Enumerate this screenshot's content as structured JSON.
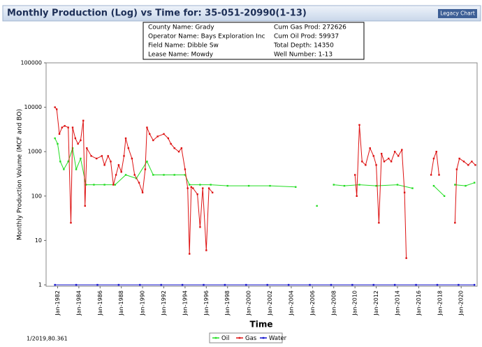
{
  "header": {
    "title": "Monthly Production (Log) vs Time for: 35-051-20990(1-13)",
    "button": "Legacy Chart"
  },
  "info_box": {
    "rows": [
      [
        "County Name:  Grady",
        "Cum Gas Prod:  272626"
      ],
      [
        "Operator Name:  Bays Exploration Inc",
        "Cum Oil Prod:  59937"
      ],
      [
        "Field Name:  Dibble Sw",
        "Total Depth:  14350"
      ],
      [
        "Lease Name:  Mowdy",
        "Well Number:  1-13"
      ]
    ]
  },
  "cursor_readout": "1/2019,80.361",
  "chart_data": {
    "type": "line",
    "x_label": "Time",
    "y_label": "Monthly Production Volume (MCF and BO)",
    "log_y": true,
    "grid": false,
    "legend": "bottom",
    "xlim": [
      "1980-12",
      "2021-07"
    ],
    "ylim": [
      1,
      100000
    ],
    "yticks": [
      1,
      10,
      100,
      1000,
      10000,
      100000
    ],
    "xticks": [
      {
        "value": "1982-01",
        "label": "Jan-1982"
      },
      {
        "value": "1984-01",
        "label": "Jan-1984"
      },
      {
        "value": "1986-01",
        "label": "Jan-1986"
      },
      {
        "value": "1988-01",
        "label": "Jan-1988"
      },
      {
        "value": "1990-01",
        "label": "Jan-1990"
      },
      {
        "value": "1992-01",
        "label": "Jan-1992"
      },
      {
        "value": "1994-01",
        "label": "Jan-1994"
      },
      {
        "value": "1996-01",
        "label": "Jan-1996"
      },
      {
        "value": "1998-01",
        "label": "Jan-1998"
      },
      {
        "value": "2000-01",
        "label": "Jan-2000"
      },
      {
        "value": "2002-01",
        "label": "Jan-2002"
      },
      {
        "value": "2004-01",
        "label": "Jan-2004"
      },
      {
        "value": "2006-01",
        "label": "Jan-2006"
      },
      {
        "value": "2008-01",
        "label": "Jan-2008"
      },
      {
        "value": "2010-01",
        "label": "Jan-2010"
      },
      {
        "value": "2012-01",
        "label": "Jan-2012"
      },
      {
        "value": "2014-01",
        "label": "Jan-2014"
      },
      {
        "value": "2016-01",
        "label": "Jan-2016"
      },
      {
        "value": "2018-01",
        "label": "Jan-2018"
      },
      {
        "value": "2020-01",
        "label": "Jan-2020"
      }
    ],
    "series": [
      {
        "name": "Oil",
        "color": "#22dd22",
        "x": [
          "1981-10",
          "1982-01",
          "1982-04",
          "1982-08",
          "1983-01",
          "1983-06",
          "1983-10",
          "1984-03",
          "1984-09",
          "1985-06",
          "1986-06",
          "1987-06",
          "1988-06",
          "1989-06",
          "1990-06",
          "1991-01",
          "1992-01",
          "1993-01",
          "1994-01",
          "1994-06",
          "1995-06",
          "1996-06",
          "1998-01",
          "2000-01",
          "2002-01",
          "2004-06",
          "2005-06",
          "2006-06",
          "2007-03",
          "2008-01",
          "2009-01",
          "2010-06",
          "2012-01",
          "2014-01",
          "2015-06",
          "2016-06",
          "2017-06",
          "2018-06",
          "2019-01",
          "2019-06",
          "2020-06",
          "2021-04"
        ],
        "values": [
          2000,
          1500,
          600,
          400,
          600,
          1200,
          400,
          700,
          180,
          180,
          180,
          180,
          300,
          250,
          600,
          300,
          300,
          300,
          300,
          180,
          180,
          180,
          170,
          170,
          170,
          160,
          null,
          60,
          null,
          180,
          170,
          180,
          170,
          180,
          150,
          null,
          170,
          100,
          null,
          180,
          170,
          200
        ]
      },
      {
        "name": "Gas",
        "color": "#dd1111",
        "x": [
          "1981-10",
          "1981-12",
          "1982-03",
          "1982-06",
          "1982-09",
          "1983-01",
          "1983-04",
          "1983-06",
          "1983-09",
          "1983-12",
          "1984-03",
          "1984-06",
          "1984-08",
          "1984-10",
          "1985-03",
          "1985-09",
          "1986-03",
          "1986-06",
          "1986-10",
          "1987-01",
          "1987-04",
          "1987-07",
          "1987-10",
          "1988-01",
          "1988-04",
          "1988-06",
          "1988-09",
          "1989-01",
          "1989-04",
          "1989-09",
          "1990-01",
          "1990-04",
          "1990-06",
          "1990-09",
          "1991-01",
          "1991-06",
          "1992-01",
          "1992-06",
          "1992-09",
          "1993-01",
          "1993-06",
          "1993-09",
          "1994-01",
          "1994-04",
          "1994-06",
          "1994-08",
          "1994-10",
          "1995-03",
          "1995-06",
          "1995-09",
          "1996-01",
          "1996-04",
          "1996-08",
          "1997-01",
          "2010-01",
          "2010-03",
          "2010-06",
          "2010-09",
          "2011-01",
          "2011-06",
          "2011-10",
          "2012-01",
          "2012-04",
          "2012-07",
          "2012-10",
          "2013-03",
          "2013-06",
          "2013-10",
          "2014-02",
          "2014-06",
          "2014-09",
          "2014-11",
          "2015-01",
          "2017-03",
          "2017-06",
          "2017-09",
          "2017-12",
          "2018-03",
          "2019-06",
          "2019-08",
          "2019-11",
          "2020-04",
          "2020-09",
          "2021-01",
          "2021-05"
        ],
        "values": [
          10000,
          9000,
          2500,
          3500,
          3800,
          3500,
          25,
          3500,
          2000,
          1500,
          1800,
          5000,
          60,
          1200,
          800,
          700,
          800,
          500,
          800,
          600,
          180,
          300,
          500,
          350,
          800,
          2000,
          1200,
          700,
          300,
          200,
          120,
          400,
          3500,
          2500,
          1800,
          2200,
          2500,
          2000,
          1500,
          1200,
          1000,
          1200,
          400,
          150,
          5,
          160,
          150,
          110,
          20,
          150,
          6,
          150,
          120,
          null,
          300,
          100,
          4000,
          600,
          500,
          1200,
          800,
          500,
          25,
          900,
          600,
          700,
          600,
          1000,
          800,
          1100,
          120,
          4,
          null,
          300,
          700,
          1000,
          300,
          null,
          25,
          400,
          700,
          600,
          500,
          600,
          500
        ]
      },
      {
        "name": "Water",
        "color": "#1111cc",
        "x": [
          "1981-10",
          "1983-10",
          "1985-10",
          "1987-10",
          "1989-10",
          "1991-10",
          "1993-10",
          "1995-10",
          "1997-10",
          "1999-10",
          "2001-10",
          "2003-10",
          "2005-10",
          "2007-10",
          "2009-10",
          "2011-10",
          "2013-10",
          "2015-10",
          "2017-10",
          "2019-10",
          "2021-04"
        ],
        "values": [
          1,
          1,
          1,
          1,
          1,
          1,
          1,
          1,
          1,
          1,
          1,
          1,
          1,
          1,
          1,
          1,
          1,
          1,
          1,
          1,
          1
        ]
      }
    ]
  }
}
